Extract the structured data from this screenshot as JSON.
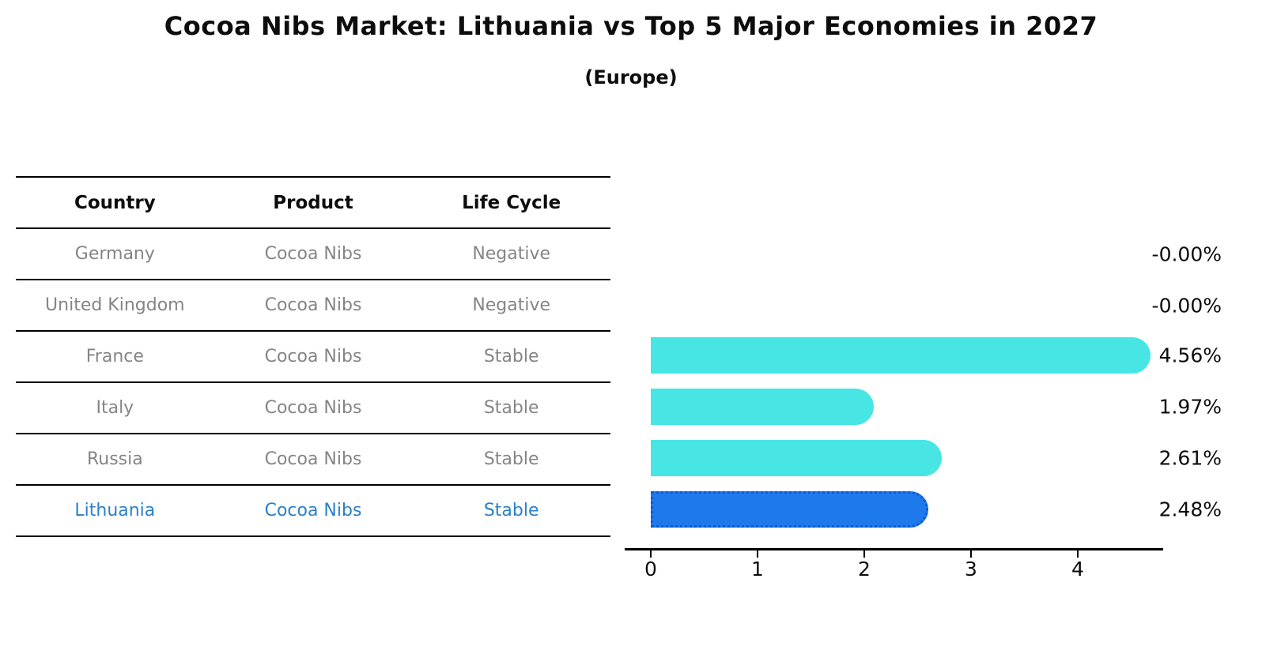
{
  "title": "Cocoa Nibs Market: Lithuania vs Top 5 Major Economies in 2027",
  "subtitle": "(Europe)",
  "table": {
    "headers": [
      "Country",
      "Product",
      "Life Cycle"
    ],
    "rows": [
      {
        "country": "Germany",
        "product": "Cocoa Nibs",
        "life_cycle": "Negative",
        "highlighted": false
      },
      {
        "country": "United Kingdom",
        "product": "Cocoa Nibs",
        "life_cycle": "Negative",
        "highlighted": false
      },
      {
        "country": "France",
        "product": "Cocoa Nibs",
        "life_cycle": "Stable",
        "highlighted": false
      },
      {
        "country": "Italy",
        "product": "Cocoa Nibs",
        "life_cycle": "Stable",
        "highlighted": false
      },
      {
        "country": "Russia",
        "product": "Cocoa Nibs",
        "life_cycle": "Stable",
        "highlighted": false
      },
      {
        "country": "Lithuania",
        "product": "Cocoa Nibs",
        "life_cycle": "Stable",
        "highlighted": true
      }
    ]
  },
  "chart_data": {
    "type": "bar",
    "orientation": "horizontal",
    "categories": [
      "Germany",
      "United Kingdom",
      "France",
      "Italy",
      "Russia",
      "Lithuania"
    ],
    "values": [
      0.0,
      0.0,
      4.56,
      1.97,
      2.61,
      2.48
    ],
    "value_labels": [
      "-0.00%",
      "-0.00%",
      "4.56%",
      "1.97%",
      "2.61%",
      "2.48%"
    ],
    "x_ticks": [
      "0",
      "1",
      "2",
      "3",
      "4"
    ],
    "xlim": [
      -0.25,
      4.8
    ],
    "grid": false,
    "legend": false,
    "highlight_index": 5,
    "bar_color": "#48E5E5",
    "highlight_bar_color": "#1E79EC",
    "highlight_border_color": "#0E5AD6",
    "highlight_text_color": "#2b80c8",
    "axis_color": "#000000",
    "label_color": "#0d0d0d",
    "row_text_color": "#858585"
  }
}
